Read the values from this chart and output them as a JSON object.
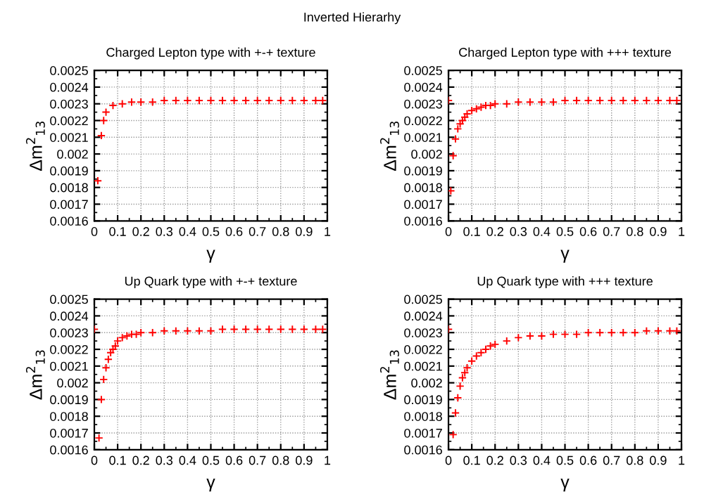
{
  "chart_data": [
    {
      "type": "scatter",
      "title": "Charged Lepton type with +-+ texture",
      "annotations": [
        "Inverted Hierarhy"
      ],
      "xlabel": "γ",
      "ylabel": "Δm$^{2}$$_{13}$",
      "color": "#ff0000",
      "marker": "cross",
      "grid": true,
      "xlim": [
        0,
        1
      ],
      "ylim": [
        0.0016,
        0.0025
      ],
      "xticks": [
        0,
        0.1,
        0.2,
        0.3,
        0.4,
        0.5,
        0.6,
        0.7,
        0.8,
        0.9,
        1
      ],
      "yticks": [
        0.0016,
        0.0017,
        0.0018,
        0.0019,
        0.002,
        0.0021,
        0.0022,
        0.0023,
        0.0024,
        0.0025
      ],
      "x": [
        0.015,
        0.03,
        0.04,
        0.05,
        0.08,
        0.12,
        0.16,
        0.2,
        0.25,
        0.3,
        0.35,
        0.4,
        0.45,
        0.5,
        0.55,
        0.6,
        0.65,
        0.7,
        0.75,
        0.8,
        0.85,
        0.9,
        0.95,
        0.98
      ],
      "values": [
        0.00184,
        0.00211,
        0.0022,
        0.00225,
        0.00229,
        0.0023,
        0.00231,
        0.00231,
        0.00231,
        0.00232,
        0.00232,
        0.00232,
        0.00232,
        0.00232,
        0.00232,
        0.00232,
        0.00232,
        0.00232,
        0.00232,
        0.00232,
        0.00232,
        0.00232,
        0.00232,
        0.00232
      ]
    },
    {
      "type": "scatter",
      "title": "Charged Lepton type with +++ texture",
      "xlabel": "γ",
      "ylabel": "Δm$^{2}$$_{13}$",
      "color": "#ff0000",
      "marker": "cross",
      "grid": true,
      "xlim": [
        0,
        1
      ],
      "ylim": [
        0.0016,
        0.0025
      ],
      "xticks": [
        0,
        0.1,
        0.2,
        0.3,
        0.4,
        0.5,
        0.6,
        0.7,
        0.8,
        0.9,
        1
      ],
      "yticks": [
        0.0016,
        0.0017,
        0.0018,
        0.0019,
        0.002,
        0.0021,
        0.0022,
        0.0023,
        0.0024,
        0.0025
      ],
      "x": [
        0,
        0.01,
        0.02,
        0.03,
        0.04,
        0.05,
        0.06,
        0.07,
        0.08,
        0.1,
        0.12,
        0.14,
        0.16,
        0.18,
        0.2,
        0.25,
        0.3,
        0.35,
        0.4,
        0.45,
        0.5,
        0.55,
        0.6,
        0.65,
        0.7,
        0.75,
        0.8,
        0.85,
        0.9,
        0.95,
        0.98
      ],
      "values": [
        0.00232,
        0.00178,
        0.00199,
        0.00209,
        0.00215,
        0.00218,
        0.0022,
        0.00222,
        0.00224,
        0.00226,
        0.00227,
        0.00228,
        0.00229,
        0.00229,
        0.0023,
        0.0023,
        0.00231,
        0.00231,
        0.00231,
        0.00231,
        0.00232,
        0.00232,
        0.00232,
        0.00232,
        0.00232,
        0.00232,
        0.00232,
        0.00232,
        0.00232,
        0.00232,
        0.00232
      ]
    },
    {
      "type": "scatter",
      "title": "Up Quark type with +-+ texture",
      "xlabel": "γ",
      "ylabel": "Δm$^{2}$$_{13}$",
      "color": "#ff0000",
      "marker": "cross",
      "grid": true,
      "xlim": [
        0,
        1
      ],
      "ylim": [
        0.0016,
        0.0025
      ],
      "xticks": [
        0,
        0.1,
        0.2,
        0.3,
        0.4,
        0.5,
        0.6,
        0.7,
        0.8,
        0.9,
        1
      ],
      "yticks": [
        0.0016,
        0.0017,
        0.0018,
        0.0019,
        0.002,
        0.0021,
        0.0022,
        0.0023,
        0.0024,
        0.0025
      ],
      "x": [
        0,
        0.02,
        0.03,
        0.04,
        0.05,
        0.06,
        0.07,
        0.08,
        0.09,
        0.1,
        0.12,
        0.14,
        0.16,
        0.18,
        0.2,
        0.25,
        0.3,
        0.35,
        0.4,
        0.45,
        0.5,
        0.55,
        0.6,
        0.65,
        0.7,
        0.75,
        0.8,
        0.85,
        0.9,
        0.95,
        0.98
      ],
      "values": [
        0.00232,
        0.00167,
        0.0019,
        0.00202,
        0.00209,
        0.00214,
        0.00218,
        0.0022,
        0.00222,
        0.00225,
        0.00227,
        0.00228,
        0.00229,
        0.00229,
        0.0023,
        0.0023,
        0.00231,
        0.00231,
        0.00231,
        0.00231,
        0.00231,
        0.00232,
        0.00232,
        0.00232,
        0.00232,
        0.00232,
        0.00232,
        0.00232,
        0.00232,
        0.00232,
        0.00232
      ]
    },
    {
      "type": "scatter",
      "title": "Up Quark type with +++ texture",
      "xlabel": "γ",
      "ylabel": "Δm$^{2}$$_{13}$",
      "color": "#ff0000",
      "marker": "cross",
      "grid": true,
      "xlim": [
        0,
        1
      ],
      "ylim": [
        0.0016,
        0.0025
      ],
      "xticks": [
        0,
        0.1,
        0.2,
        0.3,
        0.4,
        0.5,
        0.6,
        0.7,
        0.8,
        0.9,
        1
      ],
      "yticks": [
        0.0016,
        0.0017,
        0.0018,
        0.0019,
        0.002,
        0.0021,
        0.0022,
        0.0023,
        0.0024,
        0.0025
      ],
      "x": [
        0,
        0.02,
        0.03,
        0.04,
        0.05,
        0.06,
        0.07,
        0.08,
        0.1,
        0.12,
        0.14,
        0.16,
        0.18,
        0.2,
        0.25,
        0.3,
        0.35,
        0.4,
        0.45,
        0.5,
        0.55,
        0.6,
        0.65,
        0.7,
        0.75,
        0.8,
        0.85,
        0.9,
        0.95,
        0.98
      ],
      "values": [
        0.00232,
        0.00169,
        0.00182,
        0.00191,
        0.00198,
        0.00203,
        0.00206,
        0.00209,
        0.00213,
        0.00216,
        0.00218,
        0.0022,
        0.00222,
        0.00223,
        0.00225,
        0.00227,
        0.00228,
        0.00228,
        0.00229,
        0.00229,
        0.00229,
        0.0023,
        0.0023,
        0.0023,
        0.0023,
        0.0023,
        0.00231,
        0.00231,
        0.00231,
        0.00231
      ]
    }
  ]
}
